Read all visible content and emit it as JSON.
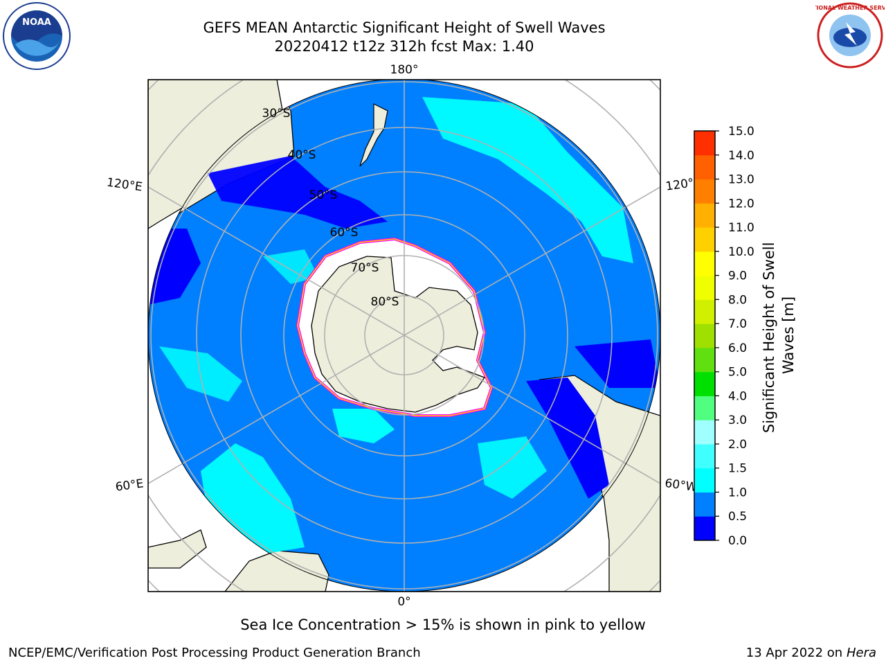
{
  "title": {
    "line1": "GEFS MEAN Antarctic Significant Height of Swell Waves",
    "line2": "20220412 t12z 312h fcst   Max: 1.40"
  },
  "logos": {
    "left": {
      "icon": "noaa-logo-icon",
      "text": "NOAA"
    },
    "right": {
      "icon": "nws-logo-icon",
      "text": "NATIONAL WEATHER SERVICE"
    }
  },
  "map": {
    "projection": "south-polar-stereographic",
    "longitude_labels": {
      "top": "180°",
      "upper_left": "120°E",
      "upper_right": "120°",
      "lower_left": "60°E",
      "lower_right": "60°W",
      "bottom": "0°"
    },
    "latitude_labels": [
      "30°S",
      "40°S",
      "50°S",
      "60°S",
      "70°S",
      "80°S"
    ],
    "colors": {
      "ocean_base": "#0080ff",
      "land": "#eeeedc",
      "ice": "#ffffff",
      "low_swell": "#0000ff",
      "mid_swell": "#00ffff",
      "ice_edge": "#ff00ff",
      "grid": "#b0b0b0"
    }
  },
  "colorbar": {
    "title": "Significant Height of Swell Waves [m]",
    "title_line1": "Significant Height of Swell",
    "title_line2": "Waves [m]",
    "ticks": [
      "15.0",
      "14.0",
      "13.0",
      "12.0",
      "11.0",
      "10.0",
      "9.0",
      "8.0",
      "7.0",
      "6.0",
      "5.0",
      "4.0",
      "3.0",
      "2.0",
      "1.5",
      "1.0",
      "0.5",
      "0.0"
    ],
    "colors": [
      "#0000ff",
      "#0080ff",
      "#00ffff",
      "#40ffff",
      "#a0ffff",
      "#50ff80",
      "#00e000",
      "#60e010",
      "#a0e000",
      "#d0f000",
      "#f0ff00",
      "#ffff00",
      "#ffd000",
      "#ffb000",
      "#ff8000",
      "#ff6000",
      "#ff3000"
    ]
  },
  "footnote": "Sea Ice Concentration > 15% is shown in pink to yellow",
  "credit_left": "NCEP/EMC/Verification Post Processing Product Generation Branch",
  "credit_right_date": "13 Apr 2022 on ",
  "credit_right_host": "Hera"
}
